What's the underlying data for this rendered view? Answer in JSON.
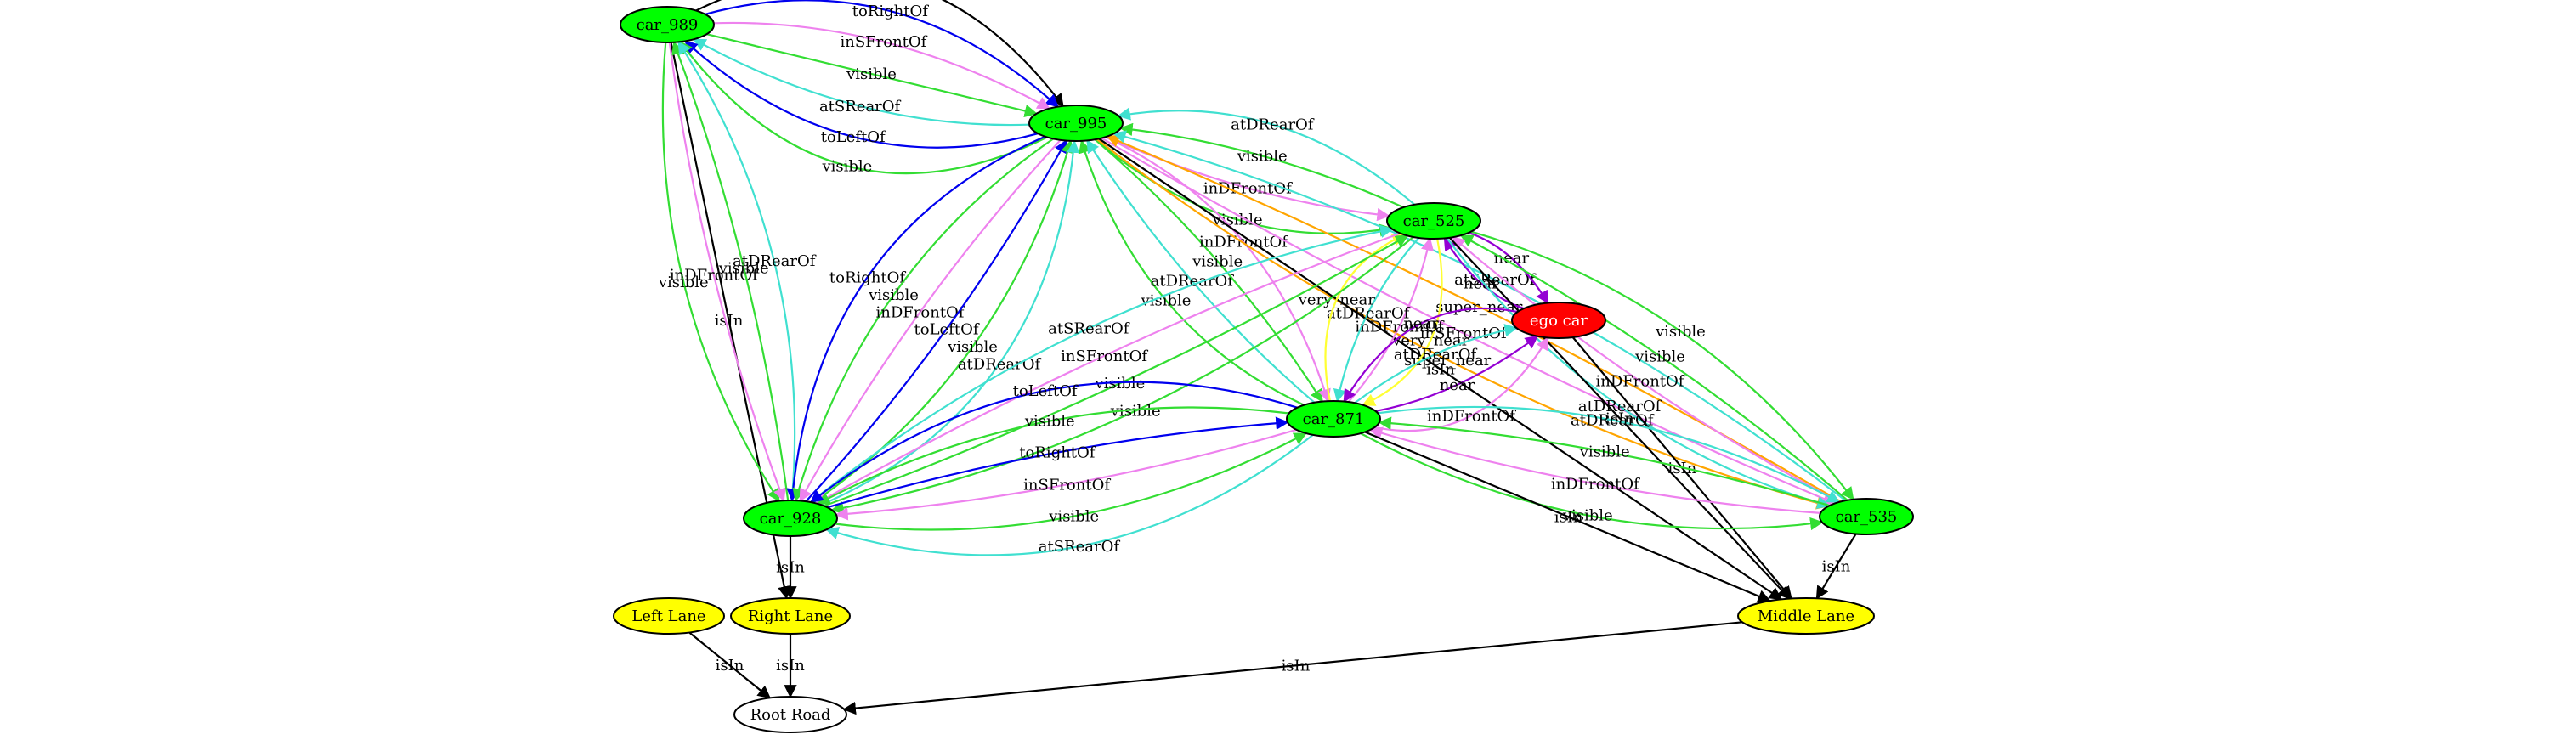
{
  "colors": {
    "car": "#00ff00",
    "ego": "#ff0000",
    "lane": "#ffff00",
    "road": "#ffffff",
    "isIn": "#000000",
    "visible": "#33dd33",
    "atDRearOf": "#40e0d0",
    "atSRearOf": "#40e0d0",
    "inDFrontOf": "#ee82ee",
    "inSFrontOf": "#ee82ee",
    "toLeftOf": "#0000ee",
    "toRightOf": "#0000ee",
    "near": "#9400d3",
    "very_near": "#ffff33",
    "super_near": "#ffa500"
  },
  "nodes": [
    {
      "id": "car_989",
      "label": "car_989",
      "type": "car"
    },
    {
      "id": "car_995",
      "label": "car_995",
      "type": "car"
    },
    {
      "id": "car_525",
      "label": "car_525",
      "type": "car"
    },
    {
      "id": "ego_car",
      "label": "ego car",
      "type": "ego"
    },
    {
      "id": "car_871",
      "label": "car_871",
      "type": "car"
    },
    {
      "id": "car_928",
      "label": "car_928",
      "type": "car"
    },
    {
      "id": "car_535",
      "label": "car_535",
      "type": "car"
    },
    {
      "id": "left_lane",
      "label": "Left Lane",
      "type": "lane"
    },
    {
      "id": "right_lane",
      "label": "Right Lane",
      "type": "lane"
    },
    {
      "id": "middle_lane",
      "label": "Middle Lane",
      "type": "lane"
    },
    {
      "id": "root_road",
      "label": "Root Road",
      "type": "road"
    }
  ],
  "edges": [
    {
      "from": "car_989",
      "to": "car_995",
      "label": "isIn"
    },
    {
      "from": "car_989",
      "to": "car_995",
      "label": "toRightOf"
    },
    {
      "from": "car_989",
      "to": "car_995",
      "label": "inSFrontOf"
    },
    {
      "from": "car_989",
      "to": "car_995",
      "label": "visible"
    },
    {
      "from": "car_995",
      "to": "car_989",
      "label": "atSRearOf"
    },
    {
      "from": "car_995",
      "to": "car_989",
      "label": "toLeftOf"
    },
    {
      "from": "car_995",
      "to": "car_989",
      "label": "visible"
    },
    {
      "from": "car_989",
      "to": "right_lane",
      "label": "isIn"
    },
    {
      "from": "car_989",
      "to": "car_928",
      "label": "visible"
    },
    {
      "from": "car_989",
      "to": "car_928",
      "label": "inDFrontOf"
    },
    {
      "from": "car_928",
      "to": "car_989",
      "label": "visible"
    },
    {
      "from": "car_928",
      "to": "car_989",
      "label": "atDRearOf"
    },
    {
      "from": "car_995",
      "to": "car_928",
      "label": "toRightOf"
    },
    {
      "from": "car_995",
      "to": "car_928",
      "label": "visible"
    },
    {
      "from": "car_995",
      "to": "car_928",
      "label": "inDFrontOf"
    },
    {
      "from": "car_928",
      "to": "car_995",
      "label": "toLeftOf"
    },
    {
      "from": "car_928",
      "to": "car_995",
      "label": "visible"
    },
    {
      "from": "car_928",
      "to": "car_995",
      "label": "atDRearOf"
    },
    {
      "from": "car_995",
      "to": "car_525",
      "label": "visible"
    },
    {
      "from": "car_995",
      "to": "car_525",
      "label": "inDFrontOf"
    },
    {
      "from": "car_525",
      "to": "car_995",
      "label": "visible"
    },
    {
      "from": "car_525",
      "to": "car_995",
      "label": "atDRearOf"
    },
    {
      "from": "car_871",
      "to": "car_995",
      "label": "visible"
    },
    {
      "from": "car_871",
      "to": "car_995",
      "label": "atDRearOf"
    },
    {
      "from": "car_995",
      "to": "car_871",
      "label": "visible"
    },
    {
      "from": "car_995",
      "to": "car_871",
      "label": "inDFrontOf"
    },
    {
      "from": "car_995",
      "to": "car_535",
      "label": "super_near"
    },
    {
      "from": "car_995",
      "to": "middle_lane",
      "label": "isIn"
    },
    {
      "from": "car_995",
      "to": "car_535",
      "label": "inSFrontOf"
    },
    {
      "from": "car_535",
      "to": "car_995",
      "label": "super_near"
    },
    {
      "from": "car_535",
      "to": "car_995",
      "label": "atSRearOf"
    },
    {
      "from": "car_525",
      "to": "ego_car",
      "label": "near"
    },
    {
      "from": "ego_car",
      "to": "car_525",
      "label": "near"
    },
    {
      "from": "car_525",
      "to": "car_871",
      "label": "very_near"
    },
    {
      "from": "car_871",
      "to": "car_525",
      "label": "inDFrontOf"
    },
    {
      "from": "car_525",
      "to": "car_871",
      "label": "atDRearOf"
    },
    {
      "from": "car_871",
      "to": "car_525",
      "label": "very_near"
    },
    {
      "from": "car_525",
      "to": "car_928",
      "label": "visible"
    },
    {
      "from": "car_928",
      "to": "car_525",
      "label": "visible"
    },
    {
      "from": "car_525",
      "to": "car_928",
      "label": "inSFrontOf"
    },
    {
      "from": "car_928",
      "to": "car_525",
      "label": "atSRearOf"
    },
    {
      "from": "car_525",
      "to": "car_535",
      "label": "visible"
    },
    {
      "from": "car_535",
      "to": "car_525",
      "label": "visible"
    },
    {
      "from": "car_535",
      "to": "car_525",
      "label": "inDFrontOf"
    },
    {
      "from": "car_525",
      "to": "car_535",
      "label": "atDRearOf"
    },
    {
      "from": "car_525",
      "to": "middle_lane",
      "label": "isIn"
    },
    {
      "from": "ego_car",
      "to": "car_871",
      "label": "near"
    },
    {
      "from": "car_871",
      "to": "ego_car",
      "label": "atDRearOf"
    },
    {
      "from": "car_871",
      "to": "ego_car",
      "label": "near"
    },
    {
      "from": "car_871",
      "to": "ego_car",
      "label": "inDFrontOf"
    },
    {
      "from": "ego_car",
      "to": "middle_lane",
      "label": "isIn"
    },
    {
      "from": "car_871",
      "to": "car_928",
      "label": "atSRearOf"
    },
    {
      "from": "car_928",
      "to": "car_871",
      "label": "visible"
    },
    {
      "from": "car_871",
      "to": "car_928",
      "label": "inSFrontOf"
    },
    {
      "from": "car_928",
      "to": "car_871",
      "label": "toRightOf"
    },
    {
      "from": "car_871",
      "to": "car_928",
      "label": "visible"
    },
    {
      "from": "car_871",
      "to": "car_928",
      "label": "toLeftOf"
    },
    {
      "from": "car_871",
      "to": "car_535",
      "label": "visible"
    },
    {
      "from": "car_535",
      "to": "car_871",
      "label": "inDFrontOf"
    },
    {
      "from": "car_535",
      "to": "car_871",
      "label": "visible"
    },
    {
      "from": "car_871",
      "to": "car_535",
      "label": "atDRearOf"
    },
    {
      "from": "car_871",
      "to": "middle_lane",
      "label": "isIn"
    },
    {
      "from": "car_928",
      "to": "right_lane",
      "label": "isIn"
    },
    {
      "from": "car_535",
      "to": "middle_lane",
      "label": "isIn"
    },
    {
      "from": "left_lane",
      "to": "root_road",
      "label": "isIn"
    },
    {
      "from": "right_lane",
      "to": "root_road",
      "label": "isIn"
    },
    {
      "from": "middle_lane",
      "to": "root_road",
      "label": "isIn"
    }
  ]
}
